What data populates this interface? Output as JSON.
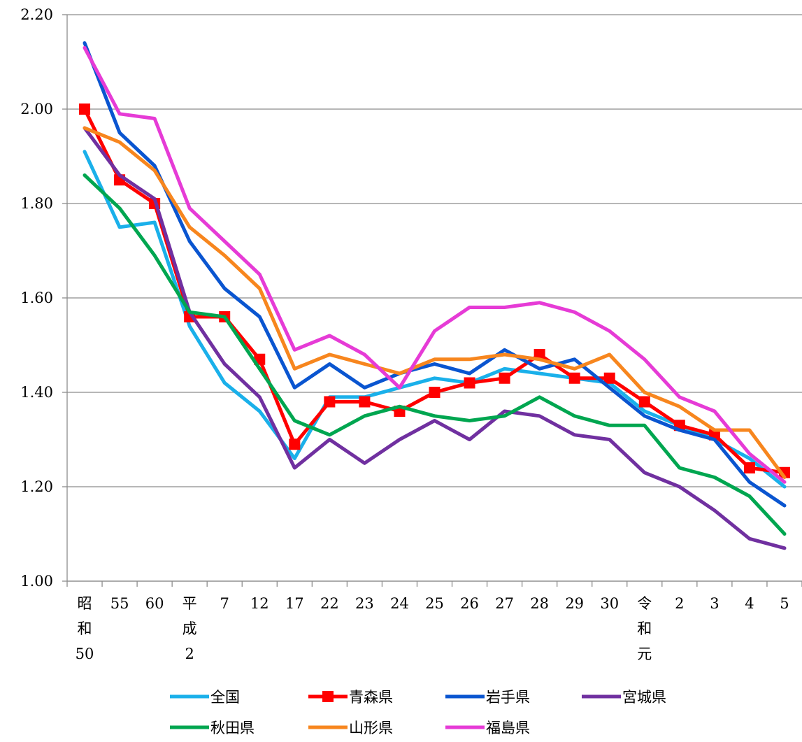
{
  "chart_data": {
    "type": "line",
    "title": "",
    "xlabel": "",
    "ylabel": "",
    "ylim": [
      1.0,
      2.2
    ],
    "y_ticks": [
      "1.00",
      "1.20",
      "1.40",
      "1.60",
      "1.80",
      "2.00",
      "2.20"
    ],
    "grid": "horizontal",
    "legend_position": "bottom",
    "categories": [
      [
        "昭",
        "和",
        "50"
      ],
      [
        "55"
      ],
      [
        "60"
      ],
      [
        "平",
        "成",
        "2"
      ],
      [
        "7"
      ],
      [
        "12"
      ],
      [
        "17"
      ],
      [
        "22"
      ],
      [
        "23"
      ],
      [
        "24"
      ],
      [
        "25"
      ],
      [
        "26"
      ],
      [
        "27"
      ],
      [
        "28"
      ],
      [
        "29"
      ],
      [
        "30"
      ],
      [
        "令",
        "和",
        "元"
      ],
      [
        "2"
      ],
      [
        "3"
      ],
      [
        "4"
      ],
      [
        "5"
      ]
    ],
    "series": [
      {
        "name": "全国",
        "color": "#1ab0ea",
        "marker": "none",
        "values": [
          1.91,
          1.75,
          1.76,
          1.54,
          1.42,
          1.36,
          1.26,
          1.39,
          1.39,
          1.41,
          1.43,
          1.42,
          1.45,
          1.44,
          1.43,
          1.42,
          1.36,
          1.33,
          1.3,
          1.26,
          1.2
        ]
      },
      {
        "name": "青森県",
        "color": "#ff0000",
        "marker": "square",
        "values": [
          2.0,
          1.85,
          1.8,
          1.56,
          1.56,
          1.47,
          1.29,
          1.38,
          1.38,
          1.36,
          1.4,
          1.42,
          1.43,
          1.48,
          1.43,
          1.43,
          1.38,
          1.33,
          1.31,
          1.24,
          1.23
        ]
      },
      {
        "name": "岩手県",
        "color": "#0a55d0",
        "marker": "none",
        "values": [
          2.14,
          1.95,
          1.88,
          1.72,
          1.62,
          1.56,
          1.41,
          1.46,
          1.41,
          1.44,
          1.46,
          1.44,
          1.49,
          1.45,
          1.47,
          1.41,
          1.35,
          1.32,
          1.3,
          1.21,
          1.16
        ]
      },
      {
        "name": "宮城県",
        "color": "#7030a0",
        "marker": "none",
        "values": [
          1.96,
          1.86,
          1.81,
          1.57,
          1.46,
          1.39,
          1.24,
          1.3,
          1.25,
          1.3,
          1.34,
          1.3,
          1.36,
          1.35,
          1.31,
          1.3,
          1.23,
          1.2,
          1.15,
          1.09,
          1.07
        ]
      },
      {
        "name": "秋田県",
        "color": "#00a650",
        "marker": "none",
        "values": [
          1.86,
          1.79,
          1.69,
          1.57,
          1.56,
          1.45,
          1.34,
          1.31,
          1.35,
          1.37,
          1.35,
          1.34,
          1.35,
          1.39,
          1.35,
          1.33,
          1.33,
          1.24,
          1.22,
          1.18,
          1.1
        ]
      },
      {
        "name": "山形県",
        "color": "#f7861e",
        "marker": "none",
        "values": [
          1.96,
          1.93,
          1.87,
          1.75,
          1.69,
          1.62,
          1.45,
          1.48,
          1.46,
          1.44,
          1.47,
          1.47,
          1.48,
          1.47,
          1.45,
          1.48,
          1.4,
          1.37,
          1.32,
          1.32,
          1.22
        ]
      },
      {
        "name": "福島県",
        "color": "#e63bd6",
        "marker": "none",
        "values": [
          2.13,
          1.99,
          1.98,
          1.79,
          1.72,
          1.65,
          1.49,
          1.52,
          1.48,
          1.41,
          1.53,
          1.58,
          1.58,
          1.59,
          1.57,
          1.53,
          1.47,
          1.39,
          1.36,
          1.27,
          1.21
        ]
      }
    ]
  }
}
